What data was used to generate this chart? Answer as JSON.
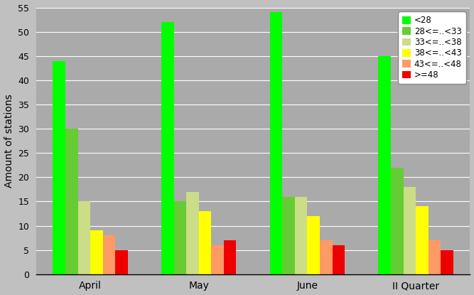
{
  "categories": [
    "April",
    "May",
    "June",
    "II Quarter"
  ],
  "series": [
    {
      "label": "<28",
      "color": "#00ff00",
      "values": [
        44,
        52,
        54,
        45
      ]
    },
    {
      "label": "28<=..<33",
      "color": "#66cc33",
      "values": [
        30,
        15,
        16,
        22
      ]
    },
    {
      "label": "33<=..<38",
      "color": "#ccdd88",
      "values": [
        15,
        17,
        16,
        18
      ]
    },
    {
      "label": "38<=..<43",
      "color": "#ffff00",
      "values": [
        9,
        13,
        12,
        14
      ]
    },
    {
      "label": "43<=..<48",
      "color": "#ff9966",
      "values": [
        8,
        6,
        7,
        7
      ]
    },
    {
      "label": ">=48",
      "color": "#ee0000",
      "values": [
        5,
        7,
        6,
        5
      ]
    }
  ],
  "ylabel": "Amount of stations",
  "ylim": [
    0,
    55
  ],
  "yticks": [
    0,
    5,
    10,
    15,
    20,
    25,
    30,
    35,
    40,
    45,
    50,
    55
  ],
  "background_color": "#c0c0c0",
  "plot_bg_color": "#aaaaaa",
  "legend_fontsize": 8.5,
  "bar_width": 0.115,
  "figsize": [
    6.67,
    4.15
  ],
  "dpi": 100
}
